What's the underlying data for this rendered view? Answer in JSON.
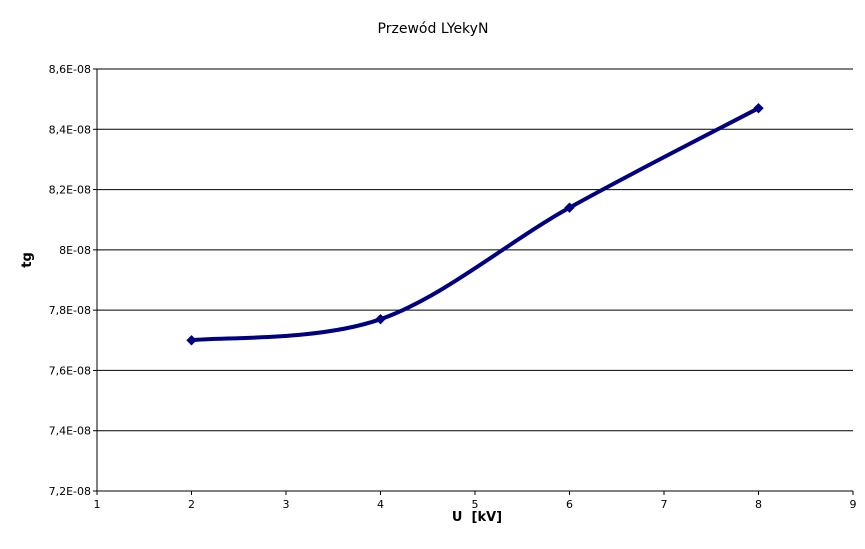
{
  "chart_data": {
    "type": "line",
    "title": "Przewód LYekyN",
    "xlabel": "U  [kV]",
    "ylabel": "tg",
    "xlim": [
      1,
      9
    ],
    "ylim": [
      7.2e-08,
      8.6e-08
    ],
    "x_ticks": [
      "1",
      "2",
      "3",
      "4",
      "5",
      "6",
      "7",
      "8",
      "9"
    ],
    "y_ticks": [
      "7,2E-08",
      "7,4E-08",
      "7,6E-08",
      "7,8E-08",
      "8E-08",
      "8,2E-08",
      "8,4E-08",
      "8,6E-08"
    ],
    "y_tick_values": [
      7.2e-08,
      7.4e-08,
      7.6e-08,
      7.8e-08,
      8e-08,
      8.2e-08,
      8.4e-08,
      8.6e-08
    ],
    "x_tick_values": [
      1,
      2,
      3,
      4,
      5,
      6,
      7,
      8,
      9
    ],
    "grid": "horizontal",
    "legend": "none",
    "series": [
      {
        "x": [
          2,
          4,
          6,
          8
        ],
        "values": [
          7.7e-08,
          7.77e-08,
          8.14e-08,
          8.47e-08
        ],
        "color": "#000080",
        "marker": "diamond"
      }
    ]
  }
}
